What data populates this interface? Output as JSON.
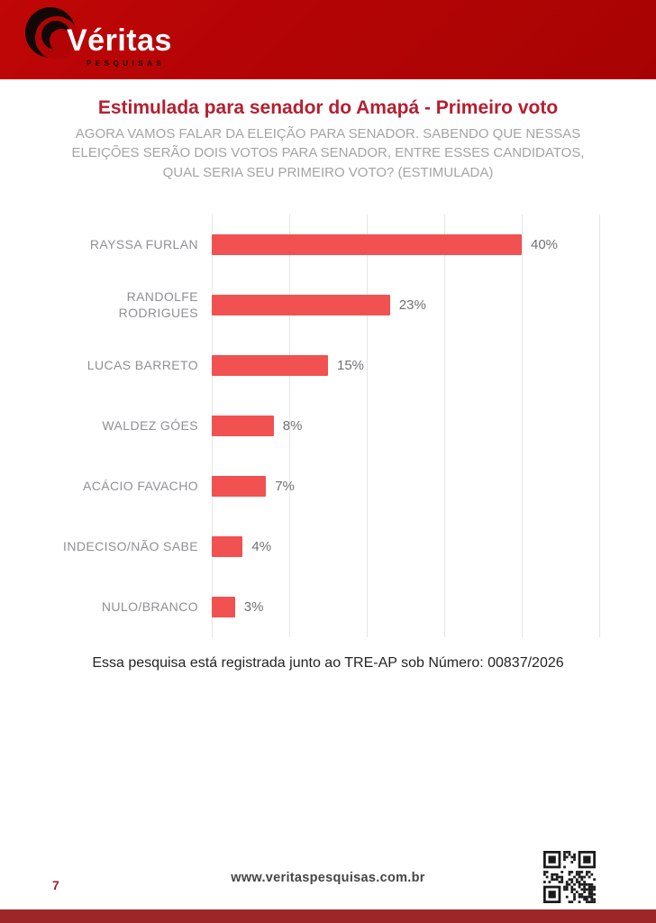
{
  "header": {
    "brand": "Véritas",
    "brand_sub": "PESQUISAS",
    "banner_color": "#b30405"
  },
  "main": {
    "title": "Estimulada para senador do Amapá - Primeiro voto",
    "subtitle": "AGORA VAMOS FALAR DA ELEIÇÃO PARA SENADOR. SABENDO QUE NESSAS ELEIÇÕES SERÃO DOIS  VOTOS PARA SENADOR, ENTRE ESSES CANDIDATOS, QUAL SERIA SEU PRIMEIRO VOTO? (ESTIMULADA)",
    "note": "Essa pesquisa está registrada junto ao TRE-AP sob Número: 00837/2026"
  },
  "chart_data": {
    "type": "bar",
    "orientation": "horizontal",
    "title": "Estimulada para senador do Amapá - Primeiro voto",
    "categories": [
      "RAYSSA FURLAN",
      "RANDOLFE RODRIGUES",
      "LUCAS BARRETO",
      "WALDEZ GÓES",
      "ACÁCIO FAVACHO",
      "INDECISO/NÃO SABE",
      "NULO/BRANCO"
    ],
    "values": [
      40,
      23,
      15,
      8,
      7,
      4,
      3
    ],
    "value_suffix": "%",
    "xlim": [
      0,
      50
    ],
    "grid_interval": 10,
    "grid": true,
    "legend": false,
    "bar_color": "#f15151"
  },
  "footer": {
    "page_number": "7",
    "website": "www.veritaspesquisas.com.br"
  },
  "colors": {
    "header_red": "#b30405",
    "title_red": "#b32031",
    "bar_red": "#f15151",
    "bottom_strip_red": "#9c2628",
    "label_gray": "#8f9094",
    "subtitle_gray": "#a4a4a6",
    "gridline_gray": "#e4e5e7"
  }
}
